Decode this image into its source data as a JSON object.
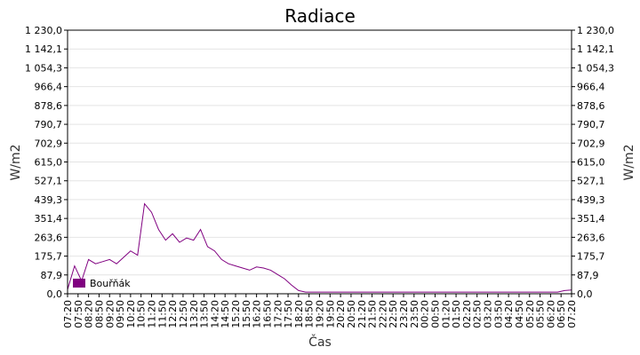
{
  "chart_data": {
    "type": "line",
    "title": "Radiace",
    "xlabel": "Čas",
    "ylabel": "W/m2",
    "ylabel_right": "W/m2",
    "ylim": [
      0,
      1230
    ],
    "y_ticks": [
      "0,0",
      "87,9",
      "175,7",
      "263,6",
      "351,4",
      "439,3",
      "527,1",
      "615,0",
      "702,9",
      "790,7",
      "878,6",
      "966,4",
      "1 054,3",
      "1 142,1",
      "1 230,0"
    ],
    "x_ticks": [
      "07:20",
      "07:50",
      "08:20",
      "08:50",
      "09:20",
      "09:50",
      "10:20",
      "10:50",
      "11:20",
      "11:50",
      "12:20",
      "12:50",
      "13:20",
      "13:50",
      "14:20",
      "14:50",
      "15:20",
      "15:50",
      "16:20",
      "16:50",
      "17:20",
      "17:50",
      "18:20",
      "18:50",
      "19:20",
      "19:50",
      "20:20",
      "20:50",
      "21:20",
      "21:50",
      "22:20",
      "22:50",
      "23:20",
      "23:50",
      "00:20",
      "00:50",
      "01:20",
      "01:50",
      "02:20",
      "02:50",
      "03:20",
      "03:50",
      "04:20",
      "04:50",
      "05:20",
      "05:50",
      "06:20",
      "06:50",
      "07:20"
    ],
    "grid": "horizontal",
    "legend_position": "bottom-left",
    "series": [
      {
        "name": "Bouřňák",
        "color": "#800080",
        "x": [
          "07:20",
          "07:40",
          "08:00",
          "08:20",
          "08:40",
          "09:00",
          "09:20",
          "09:40",
          "10:00",
          "10:20",
          "10:40",
          "11:00",
          "11:20",
          "11:40",
          "12:00",
          "12:20",
          "12:40",
          "13:00",
          "13:20",
          "13:40",
          "14:00",
          "14:20",
          "14:40",
          "15:00",
          "15:20",
          "15:40",
          "16:00",
          "16:20",
          "16:40",
          "17:00",
          "17:20",
          "17:40",
          "18:00",
          "18:20",
          "18:40",
          "19:00",
          "19:20",
          "19:40",
          "20:00",
          "20:20",
          "20:40",
          "21:00",
          "21:20",
          "21:40",
          "22:00",
          "22:20",
          "22:40",
          "23:00",
          "23:20",
          "23:40",
          "00:00",
          "00:20",
          "00:40",
          "01:00",
          "01:20",
          "01:40",
          "02:00",
          "02:20",
          "02:40",
          "03:00",
          "03:20",
          "03:40",
          "04:00",
          "04:20",
          "04:40",
          "05:00",
          "05:20",
          "05:40",
          "06:00",
          "06:20",
          "06:40",
          "07:00",
          "07:20"
        ],
        "y": [
          20,
          130,
          60,
          160,
          140,
          150,
          160,
          140,
          170,
          200,
          180,
          420,
          380,
          300,
          250,
          280,
          240,
          260,
          250,
          300,
          220,
          200,
          160,
          140,
          130,
          120,
          110,
          125,
          120,
          110,
          90,
          70,
          40,
          15,
          8,
          8,
          8,
          8,
          8,
          8,
          8,
          8,
          8,
          8,
          8,
          8,
          8,
          8,
          8,
          8,
          8,
          8,
          8,
          8,
          8,
          8,
          8,
          8,
          8,
          8,
          8,
          8,
          8,
          8,
          8,
          8,
          8,
          8,
          8,
          8,
          8,
          15,
          18
        ]
      }
    ]
  }
}
